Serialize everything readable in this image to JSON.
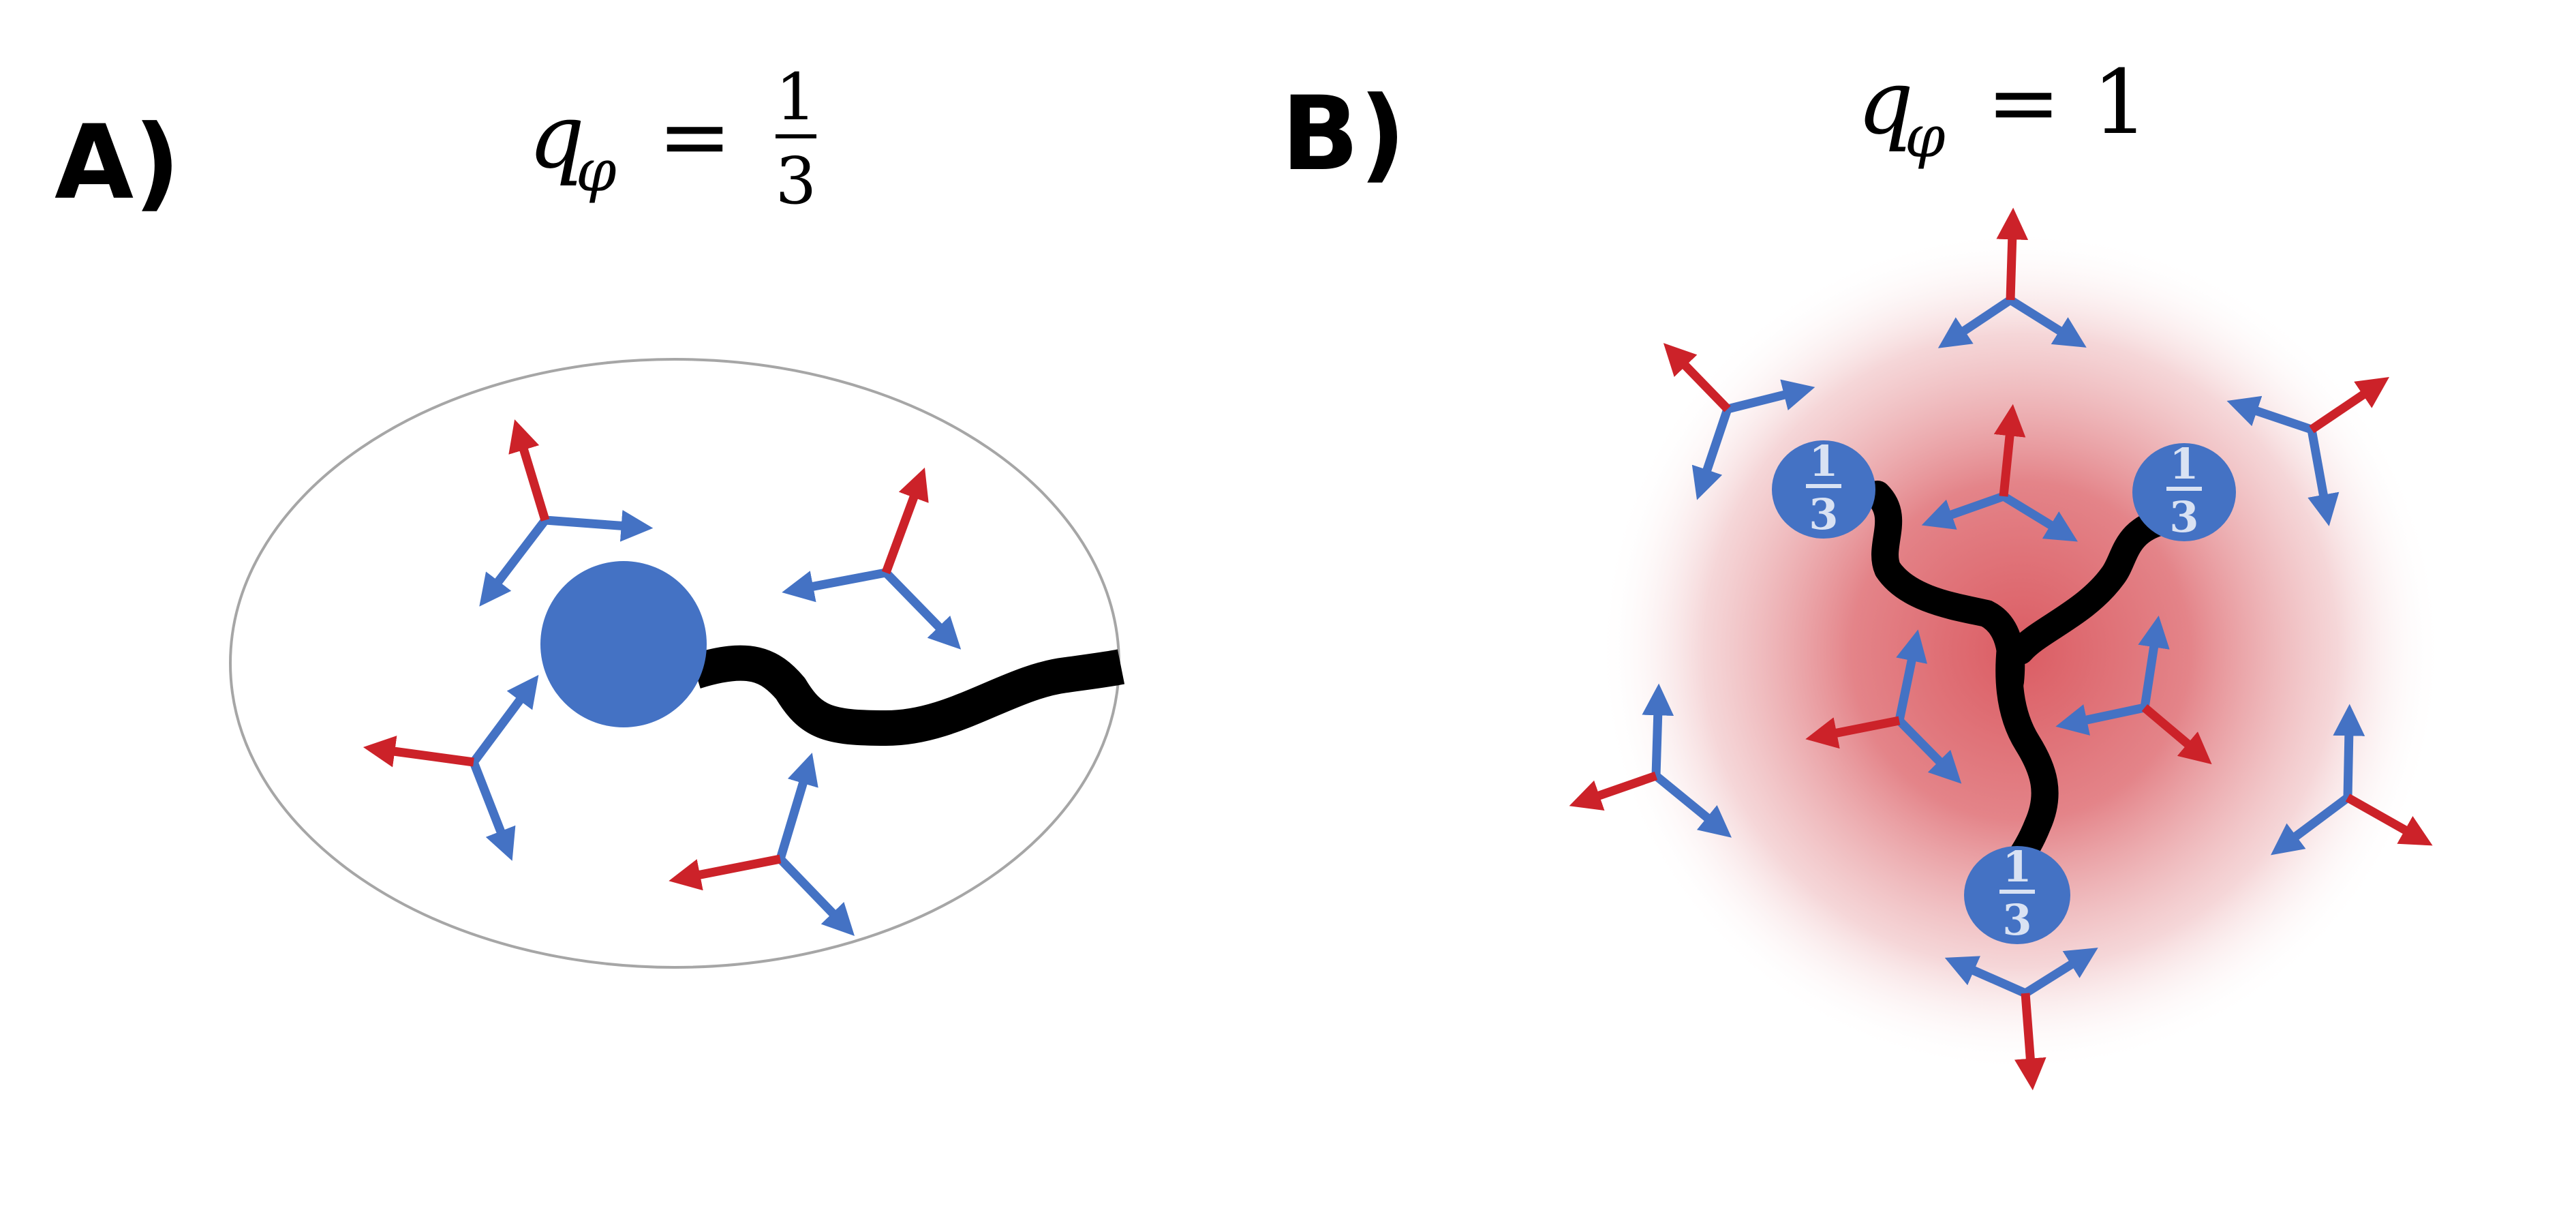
{
  "panel_a": {
    "label": "A)",
    "charge_symbol": "q",
    "charge_subscript": "φ",
    "equals": "=",
    "charge_numerator": "1",
    "charge_denominator": "3"
  },
  "panel_b": {
    "label": "B)",
    "charge_symbol": "q",
    "charge_subscript": "φ",
    "equals": "=",
    "charge_value": "1",
    "quark_numerator": "1",
    "quark_denominator": "3"
  },
  "colors": {
    "quark_blue": "#4472c4",
    "arrow_red": "#cc2229",
    "string_black": "#000000",
    "glow_red": "#d9545b",
    "boundary_gray": "#a6a6a6"
  },
  "icons": {
    "arrow_triad": "three-arrow-triad-icon",
    "quark": "quark-disc-icon",
    "flux_string": "flux-string-icon"
  }
}
